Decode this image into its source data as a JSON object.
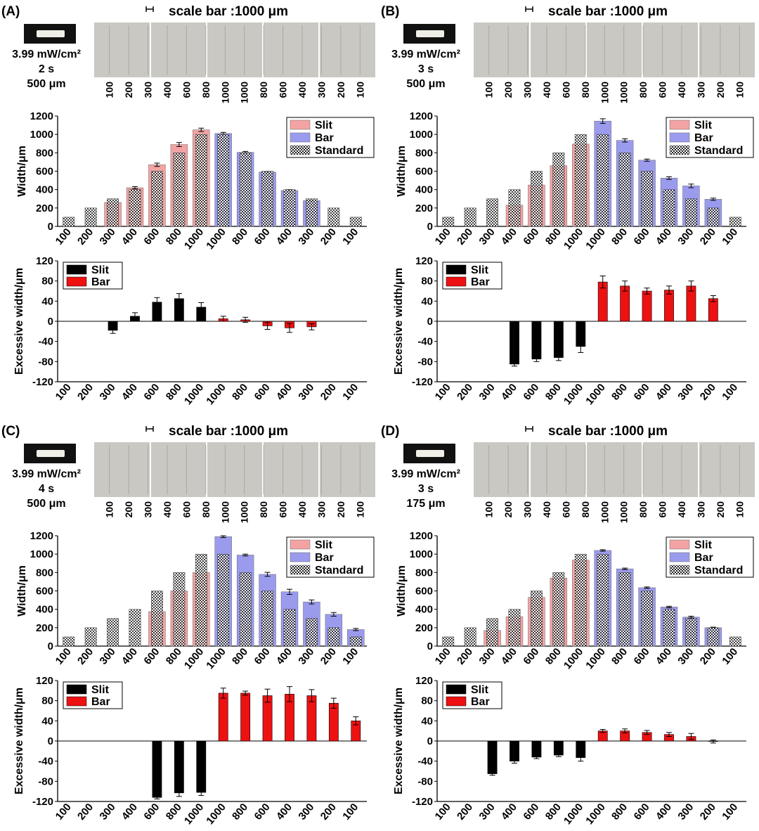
{
  "figure": {
    "colors": {
      "slit": "#f3a3a3",
      "bar": "#9b9bee",
      "standard": "#ffffff",
      "slit_excess": "#000000",
      "bar_excess": "#ee1111",
      "photo_bg": "#c9c8c2"
    },
    "legend_width": [
      "Slit",
      "Bar",
      "Standard"
    ],
    "legend_excess": [
      "Slit",
      "Bar"
    ],
    "width_ylabel": "Width/μm",
    "excess_ylabel": "Excessive width/μm",
    "scale_bar_text": "scale bar :1000 μm"
  },
  "chart_data": [
    {
      "type": "bar",
      "panel": "(A)",
      "conditions": [
        "3.99 mW/cm²",
        "2 s",
        "500 μm"
      ],
      "photo_labels": [
        "100",
        "200",
        "300",
        "400",
        "600",
        "800",
        "1000",
        "1000",
        "800",
        "600",
        "400",
        "300",
        "200",
        "100"
      ],
      "categories": [
        "100",
        "200",
        "300",
        "400",
        "600",
        "800",
        "1000",
        "1000",
        "800",
        "600",
        "400",
        "300",
        "200",
        "100"
      ],
      "width_ylim": [
        0,
        1200
      ],
      "width_yticks": [
        0,
        200,
        400,
        600,
        800,
        1000,
        1200
      ],
      "series": [
        {
          "name": "Standard",
          "values": [
            100,
            200,
            300,
            400,
            600,
            800,
            1000,
            1000,
            800,
            600,
            400,
            300,
            200,
            100
          ]
        },
        {
          "name": "Slit",
          "values": [
            null,
            null,
            260,
            420,
            670,
            890,
            1050,
            null,
            null,
            null,
            null,
            null,
            null,
            null
          ],
          "errors": [
            null,
            null,
            0,
            12,
            18,
            22,
            18,
            null,
            null,
            null,
            null,
            null,
            null,
            null
          ]
        },
        {
          "name": "Bar",
          "values": [
            null,
            null,
            null,
            null,
            null,
            null,
            null,
            1010,
            805,
            590,
            390,
            280,
            null,
            null
          ],
          "errors": [
            null,
            null,
            null,
            null,
            null,
            null,
            null,
            12,
            10,
            8,
            10,
            8,
            null,
            null
          ]
        }
      ],
      "excess_ylim": [
        -120,
        120
      ],
      "excess_yticks": [
        -120,
        -80,
        -40,
        0,
        40,
        80,
        120
      ],
      "excess_slit": [
        null,
        null,
        -18,
        10,
        38,
        45,
        28,
        null,
        null,
        null,
        null,
        null,
        null,
        null
      ],
      "excess_slit_err": [
        null,
        null,
        6,
        7,
        9,
        10,
        9,
        null,
        null,
        null,
        null,
        null,
        null,
        null
      ],
      "excess_bar": [
        null,
        null,
        null,
        null,
        null,
        null,
        null,
        5,
        3,
        -9,
        -13,
        -11,
        null,
        null
      ],
      "excess_bar_err": [
        null,
        null,
        null,
        null,
        null,
        null,
        null,
        5,
        5,
        7,
        9,
        6,
        null,
        null
      ]
    },
    {
      "type": "bar",
      "panel": "(B)",
      "conditions": [
        "3.99 mW/cm²",
        "3 s",
        "500 μm"
      ],
      "photo_labels": [
        "100",
        "200",
        "300",
        "400",
        "600",
        "800",
        "1000",
        "1000",
        "800",
        "600",
        "400",
        "300",
        "200",
        "100"
      ],
      "categories": [
        "100",
        "200",
        "300",
        "400",
        "600",
        "800",
        "1000",
        "1000",
        "800",
        "600",
        "400",
        "300",
        "200",
        "100"
      ],
      "width_ylim": [
        0,
        1200
      ],
      "width_yticks": [
        0,
        200,
        400,
        600,
        800,
        1000,
        1200
      ],
      "series": [
        {
          "name": "Standard",
          "values": [
            100,
            200,
            300,
            400,
            600,
            800,
            1000,
            1000,
            800,
            600,
            400,
            300,
            200,
            100
          ]
        },
        {
          "name": "Slit",
          "values": [
            null,
            null,
            null,
            230,
            450,
            660,
            895,
            null,
            null,
            null,
            null,
            null,
            null,
            null
          ],
          "errors": [
            null,
            null,
            null,
            0,
            0,
            0,
            0,
            null,
            null,
            null,
            null,
            null,
            null,
            null
          ]
        },
        {
          "name": "Bar",
          "values": [
            null,
            null,
            null,
            null,
            null,
            null,
            null,
            1145,
            935,
            720,
            525,
            440,
            295,
            null
          ],
          "errors": [
            null,
            null,
            null,
            null,
            null,
            null,
            null,
            25,
            18,
            12,
            15,
            20,
            12,
            null
          ]
        }
      ],
      "excess_ylim": [
        -120,
        120
      ],
      "excess_yticks": [
        -120,
        -80,
        -40,
        0,
        40,
        80,
        120
      ],
      "excess_slit": [
        null,
        null,
        null,
        -85,
        -75,
        -72,
        -50,
        null,
        null,
        null,
        null,
        null,
        null,
        null
      ],
      "excess_slit_err": [
        null,
        null,
        null,
        4,
        5,
        6,
        12,
        null,
        null,
        null,
        null,
        null,
        null,
        null
      ],
      "excess_bar": [
        null,
        null,
        null,
        null,
        null,
        null,
        null,
        78,
        70,
        60,
        62,
        70,
        45,
        null
      ],
      "excess_bar_err": [
        null,
        null,
        null,
        null,
        null,
        null,
        null,
        12,
        10,
        6,
        8,
        10,
        6,
        null
      ]
    },
    {
      "type": "bar",
      "panel": "(C)",
      "conditions": [
        "3.99 mW/cm²",
        "4 s",
        "500 μm"
      ],
      "photo_labels": [
        "100",
        "200",
        "300",
        "400",
        "600",
        "800",
        "1000",
        "1000",
        "800",
        "600",
        "400",
        "300",
        "200",
        "100"
      ],
      "categories": [
        "100",
        "200",
        "300",
        "400",
        "600",
        "800",
        "1000",
        "1000",
        "800",
        "600",
        "400",
        "300",
        "200",
        "100"
      ],
      "width_ylim": [
        0,
        1200
      ],
      "width_yticks": [
        0,
        200,
        400,
        600,
        800,
        1000,
        1200
      ],
      "series": [
        {
          "name": "Standard",
          "values": [
            100,
            200,
            300,
            400,
            600,
            800,
            1000,
            1000,
            800,
            600,
            400,
            300,
            200,
            100
          ]
        },
        {
          "name": "Slit",
          "values": [
            null,
            null,
            null,
            null,
            375,
            600,
            800,
            null,
            null,
            null,
            null,
            null,
            null,
            null
          ],
          "errors": [
            null,
            null,
            null,
            null,
            0,
            0,
            0,
            null,
            null,
            null,
            null,
            null,
            null,
            null
          ]
        },
        {
          "name": "Bar",
          "values": [
            null,
            null,
            null,
            null,
            null,
            null,
            null,
            1190,
            990,
            780,
            590,
            480,
            345,
            180
          ],
          "errors": [
            null,
            null,
            null,
            null,
            null,
            null,
            null,
            10,
            10,
            22,
            28,
            22,
            20,
            12
          ]
        }
      ],
      "excess_ylim": [
        -120,
        120
      ],
      "excess_yticks": [
        -120,
        -80,
        -40,
        0,
        40,
        80,
        120
      ],
      "excess_slit": [
        null,
        null,
        null,
        null,
        -112,
        -103,
        -102,
        null,
        null,
        null,
        null,
        null,
        null,
        null
      ],
      "excess_slit_err": [
        null,
        null,
        null,
        null,
        3,
        7,
        6,
        null,
        null,
        null,
        null,
        null,
        null,
        null
      ],
      "excess_bar": [
        null,
        null,
        null,
        null,
        null,
        null,
        null,
        95,
        95,
        90,
        93,
        90,
        75,
        40
      ],
      "excess_bar_err": [
        null,
        null,
        null,
        null,
        null,
        null,
        null,
        10,
        4,
        13,
        15,
        12,
        10,
        8
      ]
    },
    {
      "type": "bar",
      "panel": "(D)",
      "conditions": [
        "3.99 mW/cm²",
        "3 s",
        "175 μm"
      ],
      "photo_labels": [
        "100",
        "200",
        "300",
        "400",
        "600",
        "800",
        "1000",
        "1000",
        "800",
        "600",
        "400",
        "300",
        "200",
        "100"
      ],
      "categories": [
        "100",
        "200",
        "300",
        "400",
        "600",
        "800",
        "1000",
        "1000",
        "800",
        "600",
        "400",
        "300",
        "200",
        "100"
      ],
      "width_ylim": [
        0,
        1200
      ],
      "width_yticks": [
        0,
        200,
        400,
        600,
        800,
        1000,
        1200
      ],
      "series": [
        {
          "name": "Standard",
          "values": [
            100,
            200,
            300,
            400,
            600,
            800,
            1000,
            1000,
            800,
            600,
            400,
            300,
            200,
            100
          ]
        },
        {
          "name": "Slit",
          "values": [
            null,
            null,
            170,
            320,
            530,
            740,
            935,
            null,
            null,
            null,
            null,
            null,
            null,
            null
          ],
          "errors": [
            null,
            null,
            0,
            0,
            0,
            0,
            0,
            null,
            null,
            null,
            null,
            null,
            null,
            null
          ]
        },
        {
          "name": "Bar",
          "values": [
            null,
            null,
            null,
            null,
            null,
            null,
            null,
            1040,
            840,
            635,
            425,
            315,
            200,
            null
          ],
          "errors": [
            null,
            null,
            null,
            null,
            null,
            null,
            null,
            8,
            8,
            8,
            8,
            10,
            6,
            null
          ]
        }
      ],
      "excess_ylim": [
        -120,
        120
      ],
      "excess_yticks": [
        -120,
        -80,
        -40,
        0,
        40,
        80,
        120
      ],
      "excess_slit": [
        null,
        null,
        -65,
        -40,
        -32,
        -28,
        -33,
        null,
        null,
        null,
        null,
        null,
        null,
        null
      ],
      "excess_slit_err": [
        null,
        null,
        3,
        4,
        3,
        3,
        7,
        null,
        null,
        null,
        null,
        null,
        null,
        null
      ],
      "excess_bar": [
        null,
        null,
        null,
        null,
        null,
        null,
        null,
        20,
        20,
        17,
        13,
        9,
        -1,
        null
      ],
      "excess_bar_err": [
        null,
        null,
        null,
        null,
        null,
        null,
        null,
        3,
        4,
        4,
        4,
        6,
        3,
        null
      ]
    }
  ]
}
